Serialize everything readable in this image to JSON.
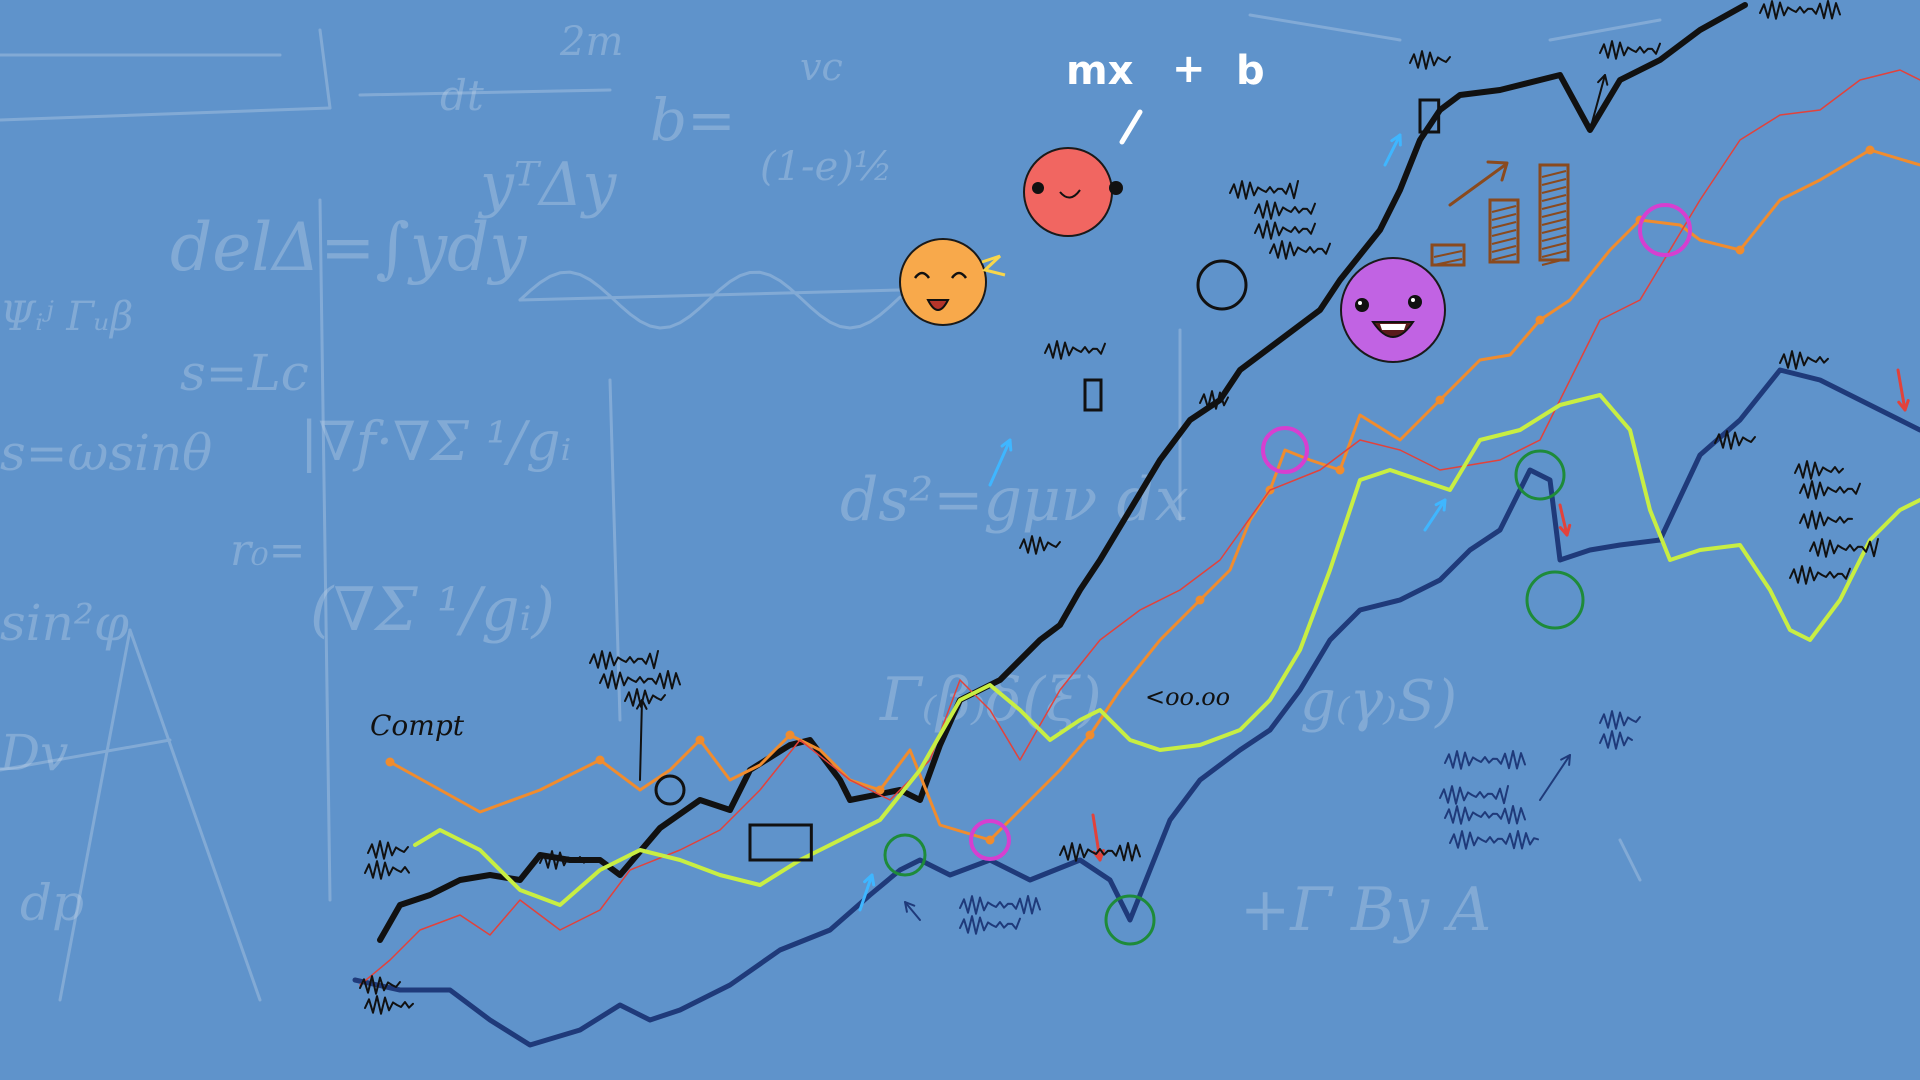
{
  "board": {
    "background": "#5f93cb",
    "chalk_color": "#c5d6ea"
  },
  "formula": {
    "left": "mx",
    "plus": "+",
    "right": "b",
    "color": "#ffffff"
  },
  "faces": [
    {
      "name": "red-smiley",
      "color": "#f16661"
    },
    {
      "name": "orange-smiley",
      "color": "#f8a94b"
    },
    {
      "name": "purple-smiley",
      "color": "#c163e3"
    }
  ],
  "lines": {
    "black": "#111111",
    "dark_blue": "#1f3a7a",
    "orange": "#f08c2e",
    "red": "#e2423b",
    "lime": "#c8ee43",
    "magenta": "#d63fd0",
    "green": "#1e8b3a",
    "cyan_arrow": "#3fb6ff",
    "brown": "#8a4a1e"
  },
  "annotations": {
    "compute": "Compt",
    "eight_hundred": "&lt;oo.oo"
  }
}
